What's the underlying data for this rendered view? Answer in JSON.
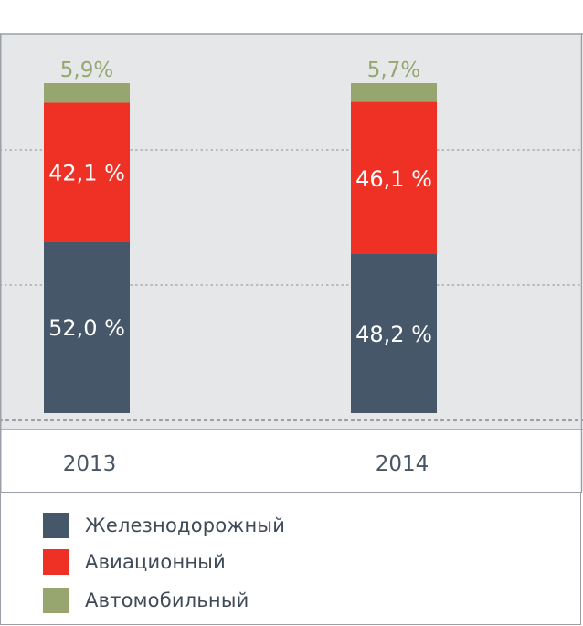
{
  "chart_data": {
    "type": "bar",
    "stacked": true,
    "categories": [
      "2013",
      "2014"
    ],
    "series": [
      {
        "name": "Железнодорожный",
        "values": [
          52.0,
          48.2
        ],
        "labels": [
          "52,0 %",
          "48,2 %"
        ],
        "color": "#465769"
      },
      {
        "name": "Авиационный",
        "values": [
          42.1,
          46.1
        ],
        "labels": [
          "42,1 %",
          "46,1 %"
        ],
        "color": "#ee3124"
      },
      {
        "name": "Автомобильный",
        "values": [
          5.9,
          5.7
        ],
        "labels": [
          "5,9%",
          "5,7%"
        ],
        "color": "#97a56f"
      }
    ],
    "ylim": [
      0,
      100
    ],
    "grid": true,
    "legend_position": "bottom"
  },
  "colors": {
    "plot_background": "#e6e7e9",
    "grid_line": "#9aa0a6",
    "bar_label_inside": "#ffffff",
    "top_label": "#97a56f",
    "axis_text": "#4a5563"
  }
}
